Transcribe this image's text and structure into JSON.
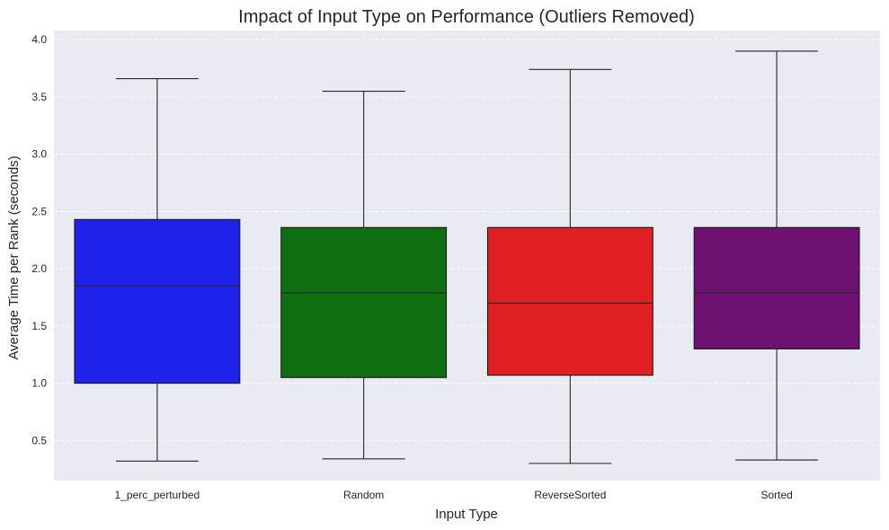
{
  "chart_data": {
    "type": "box",
    "title": "Impact of Input Type on Performance (Outliers Removed)",
    "xlabel": "Input Type",
    "ylabel": "Average Time per Rank (seconds)",
    "ylim": [
      0.15,
      4.08
    ],
    "yticks": [
      "0.5",
      "1.0",
      "1.5",
      "2.0",
      "2.5",
      "3.0",
      "3.5",
      "4.0"
    ],
    "grid": "y-dashed",
    "categories": [
      "1_perc_perturbed",
      "Random",
      "ReverseSorted",
      "Sorted"
    ],
    "boxes": [
      {
        "category": "1_perc_perturbed",
        "whisker_low": 0.32,
        "q1": 1.0,
        "median": 1.85,
        "q3": 2.43,
        "whisker_high": 3.66,
        "color": "#1f22e8"
      },
      {
        "category": "Random",
        "whisker_low": 0.34,
        "q1": 1.05,
        "median": 1.79,
        "q3": 2.36,
        "whisker_high": 3.55,
        "color": "#0f6e12"
      },
      {
        "category": "ReverseSorted",
        "whisker_low": 0.3,
        "q1": 1.07,
        "median": 1.7,
        "q3": 2.36,
        "whisker_high": 3.74,
        "color": "#e01f21"
      },
      {
        "category": "Sorted",
        "whisker_low": 0.33,
        "q1": 1.3,
        "median": 1.79,
        "q3": 2.36,
        "whisker_high": 3.9,
        "color": "#6e1170"
      }
    ]
  }
}
